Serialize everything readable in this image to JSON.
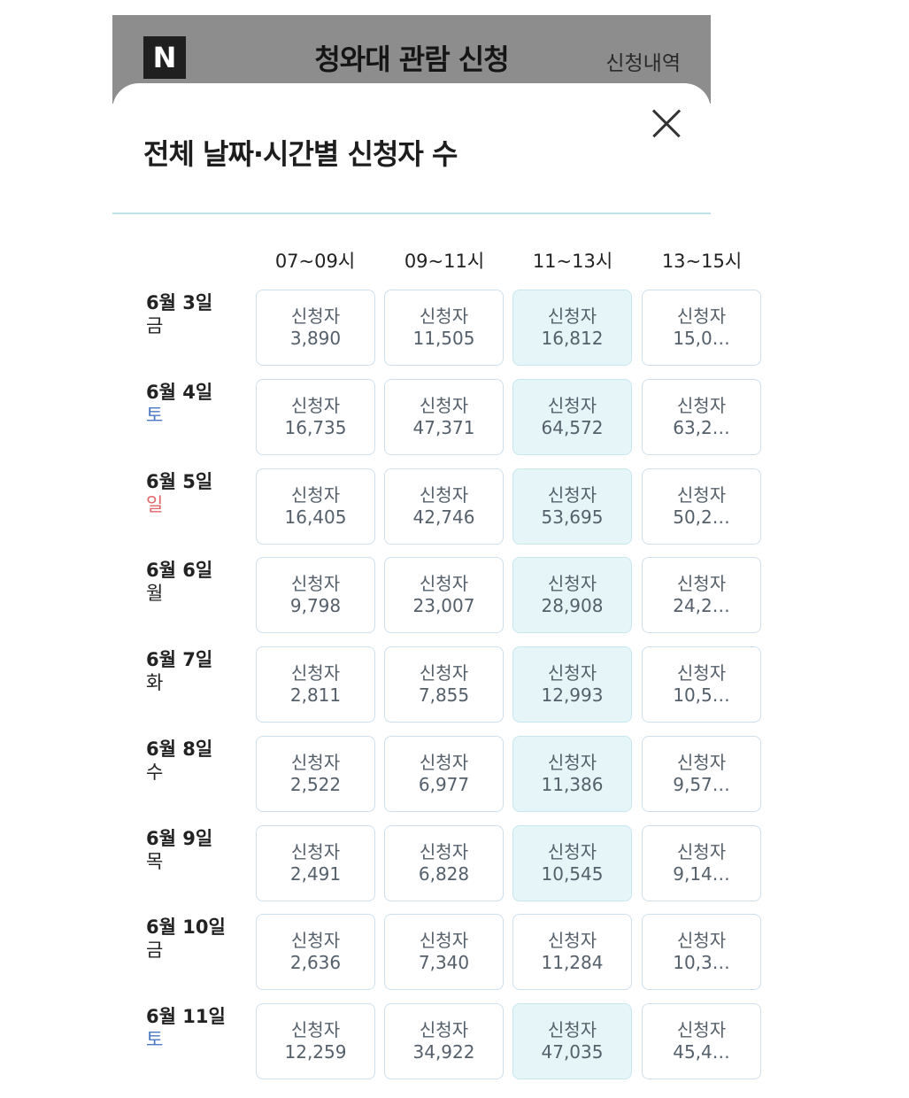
{
  "header": {
    "logo": "N",
    "title": "청와대 관람 신청",
    "history": "신청내역"
  },
  "sheet": {
    "title": "전체 날짜·시간별 신청자 수"
  },
  "columns": [
    "07~09시",
    "09~11시",
    "11~13시",
    "13~15시"
  ],
  "cell_label": "신청자",
  "rows": [
    {
      "date": "6월 3일",
      "weekday": "금",
      "values": [
        "3,890",
        "11,505",
        "16,812",
        "15,0…"
      ]
    },
    {
      "date": "6월 4일",
      "weekday": "토",
      "values": [
        "16,735",
        "47,371",
        "64,572",
        "63,2…"
      ]
    },
    {
      "date": "6월 5일",
      "weekday": "일",
      "values": [
        "16,405",
        "42,746",
        "53,695",
        "50,2…"
      ]
    },
    {
      "date": "6월 6일",
      "weekday": "월",
      "values": [
        "9,798",
        "23,007",
        "28,908",
        "24,2…"
      ]
    },
    {
      "date": "6월 7일",
      "weekday": "화",
      "values": [
        "2,811",
        "7,855",
        "12,993",
        "10,5…"
      ]
    },
    {
      "date": "6월 8일",
      "weekday": "수",
      "values": [
        "2,522",
        "6,977",
        "11,386",
        "9,57…"
      ]
    },
    {
      "date": "6월 9일",
      "weekday": "목",
      "values": [
        "2,491",
        "6,828",
        "10,545",
        "9,14…"
      ]
    },
    {
      "date": "6월 10일",
      "weekday": "금",
      "values": [
        "2,636",
        "7,340",
        "11,284",
        "10,3…"
      ]
    },
    {
      "date": "6월 11일",
      "weekday": "토",
      "values": [
        "12,259",
        "34,922",
        "47,035",
        "45,4…"
      ]
    }
  ],
  "highlighted": [
    [
      false,
      false,
      true,
      false
    ],
    [
      false,
      false,
      true,
      false
    ],
    [
      false,
      false,
      true,
      false
    ],
    [
      false,
      false,
      true,
      false
    ],
    [
      false,
      false,
      true,
      false
    ],
    [
      false,
      false,
      true,
      false
    ],
    [
      false,
      false,
      true,
      false
    ],
    [
      false,
      false,
      false,
      false
    ],
    [
      false,
      false,
      true,
      false
    ]
  ],
  "colors": {
    "highlight_bg": "#e6f6f8",
    "saturday": "#4a78c2",
    "sunday": "#e0666b"
  }
}
